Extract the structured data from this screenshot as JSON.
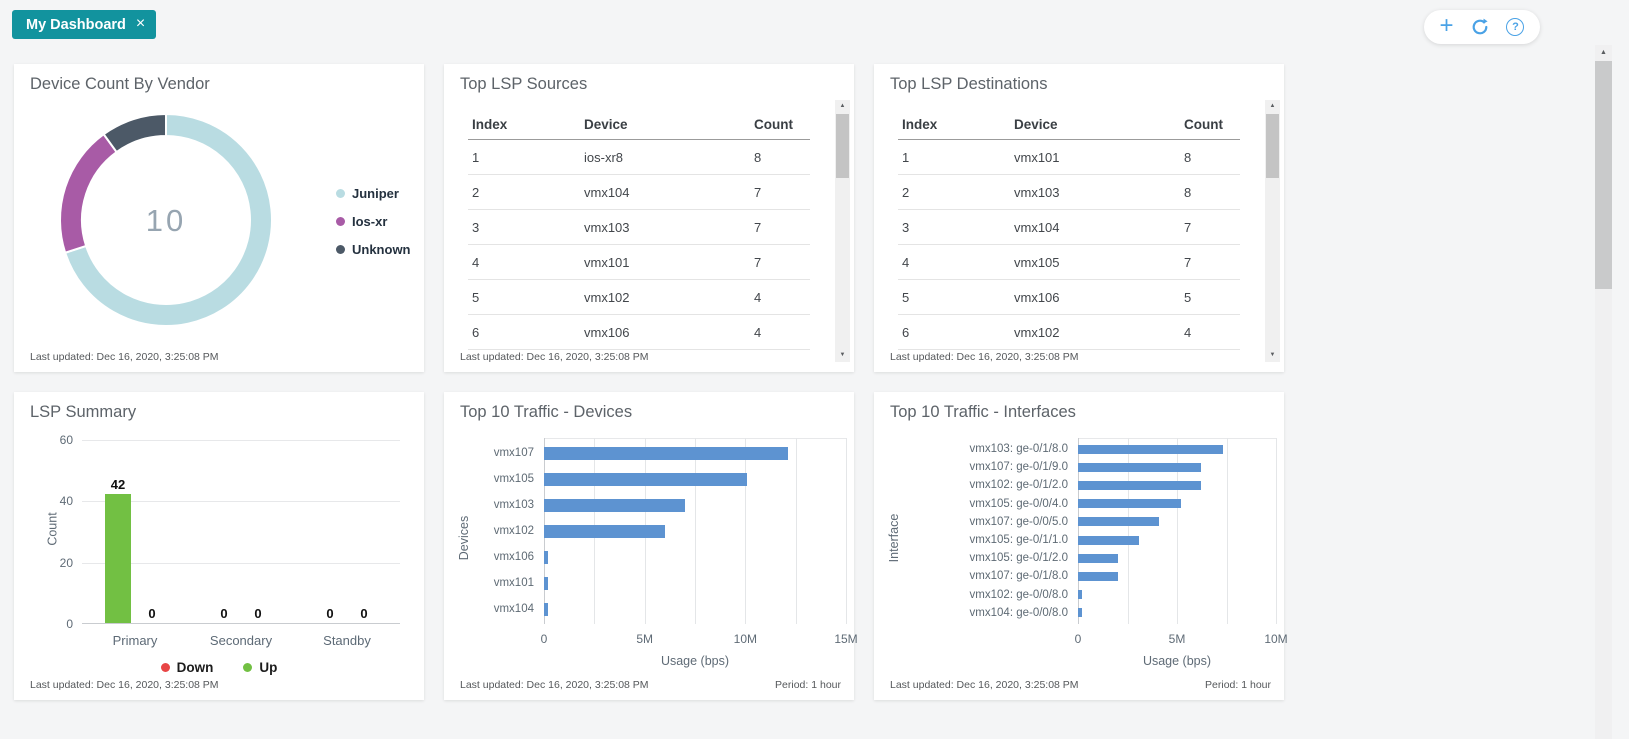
{
  "header": {
    "tab_label": "My Dashboard",
    "close_glyph": "×",
    "add_glyph": "+",
    "help_glyph": "?"
  },
  "icons": {
    "scroll_up": "▲",
    "scroll_down": "▼"
  },
  "panels": {
    "vendor": {
      "title": "Device Count By Vendor",
      "last_updated": "Last updated: Dec 16, 2020, 3:25:08 PM"
    },
    "sources": {
      "title": "Top LSP Sources",
      "last_updated": "Last updated: Dec 16, 2020, 3:25:08 PM"
    },
    "destinations": {
      "title": "Top LSP Destinations",
      "last_updated": "Last updated: Dec 16, 2020, 3:25:08 PM"
    },
    "summary": {
      "title": "LSP Summary",
      "last_updated": "Last updated: Dec 16, 2020, 3:25:08 PM"
    },
    "traffic_devices": {
      "title": "Top 10 Traffic - Devices",
      "last_updated": "Last updated: Dec 16, 2020, 3:25:08 PM",
      "period": "Period: 1 hour"
    },
    "traffic_interfaces": {
      "title": "Top 10 Traffic - Interfaces",
      "last_updated": "Last updated: Dec 16, 2020, 3:25:08 PM",
      "period": "Period: 1 hour"
    }
  },
  "chart_data": [
    {
      "id": "vendor_donut",
      "type": "pie",
      "title": "Device Count By Vendor",
      "center_label": "10",
      "legend_position": "right",
      "slices": [
        {
          "label": "Juniper",
          "value": 7,
          "color": "#b9dce2"
        },
        {
          "label": "Ios-xr",
          "value": 2,
          "color": "#a85ba6"
        },
        {
          "label": "Unknown",
          "value": 1,
          "color": "#4c5967"
        }
      ]
    },
    {
      "id": "lsp_sources",
      "type": "table",
      "title": "Top LSP Sources",
      "columns": [
        "Index",
        "Device",
        "Count"
      ],
      "rows": [
        [
          "1",
          "ios-xr8",
          "8"
        ],
        [
          "2",
          "vmx104",
          "7"
        ],
        [
          "3",
          "vmx103",
          "7"
        ],
        [
          "4",
          "vmx101",
          "7"
        ],
        [
          "5",
          "vmx102",
          "4"
        ],
        [
          "6",
          "vmx106",
          "4"
        ]
      ]
    },
    {
      "id": "lsp_destinations",
      "type": "table",
      "title": "Top LSP Destinations",
      "columns": [
        "Index",
        "Device",
        "Count"
      ],
      "rows": [
        [
          "1",
          "vmx101",
          "8"
        ],
        [
          "2",
          "vmx103",
          "8"
        ],
        [
          "3",
          "vmx104",
          "7"
        ],
        [
          "4",
          "vmx105",
          "7"
        ],
        [
          "5",
          "vmx106",
          "5"
        ],
        [
          "6",
          "vmx102",
          "4"
        ]
      ]
    },
    {
      "id": "lsp_summary",
      "type": "bar",
      "title": "LSP Summary",
      "categories": [
        "Primary",
        "Secondary",
        "Standby"
      ],
      "series": [
        {
          "name": "Up",
          "color": "#72c043",
          "values": [
            42,
            0,
            0
          ]
        },
        {
          "name": "Down",
          "color": "#e84545",
          "values": [
            0,
            0,
            0
          ]
        }
      ],
      "legend": [
        {
          "name": "Down",
          "color": "#e84545"
        },
        {
          "name": "Up",
          "color": "#72c043"
        }
      ],
      "ylabel": "Count",
      "yticks": [
        0,
        20,
        40,
        60
      ],
      "ylim": [
        0,
        60
      ],
      "grid": true
    },
    {
      "id": "traffic_devices",
      "type": "bar-horizontal",
      "title": "Top 10 Traffic - Devices",
      "categories": [
        "vmx107",
        "vmx105",
        "vmx103",
        "vmx102",
        "vmx106",
        "vmx101",
        "vmx104"
      ],
      "values_mbps": [
        12.1,
        10.1,
        7.0,
        6.0,
        0.2,
        0.2,
        0.2
      ],
      "xlabel": "Usage (bps)",
      "ylabel": "Devices",
      "xticks": [
        "0",
        "5M",
        "10M",
        "15M"
      ],
      "xlim_m": 15,
      "minor_gridlines_every_m": 2.5,
      "bar_color": "#5d93d1"
    },
    {
      "id": "traffic_interfaces",
      "type": "bar-horizontal",
      "title": "Top 10 Traffic - Interfaces",
      "categories": [
        "vmx103: ge-0/1/8.0",
        "vmx107: ge-0/1/9.0",
        "vmx102: ge-0/1/2.0",
        "vmx105: ge-0/0/4.0",
        "vmx107: ge-0/0/5.0",
        "vmx105: ge-0/1/1.0",
        "vmx105: ge-0/1/2.0",
        "vmx107: ge-0/1/8.0",
        "vmx102: ge-0/0/8.0",
        "vmx104: ge-0/0/8.0"
      ],
      "values_mbps": [
        7.3,
        6.2,
        6.2,
        5.2,
        4.1,
        3.1,
        2.0,
        2.0,
        0.2,
        0.2
      ],
      "xlabel": "Usage (bps)",
      "ylabel": "Interface",
      "xticks": [
        "0",
        "5M",
        "10M"
      ],
      "xlim_m": 10,
      "minor_gridlines_every_m": 2.5,
      "bar_color": "#5d93d1"
    }
  ]
}
